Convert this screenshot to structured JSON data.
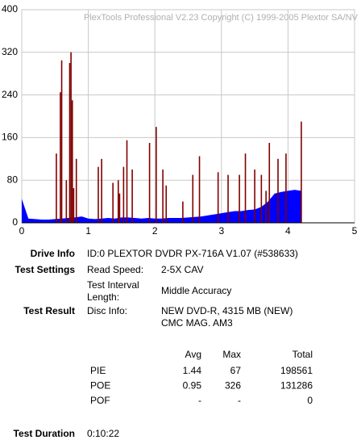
{
  "chart_data": {
    "type": "plex",
    "watermark": "PlexTools Professional V2.23 Copyright (C) 1999-2005 Plextor SA/NV",
    "xlim": [
      0,
      5
    ],
    "xticks": [
      0,
      1,
      2,
      3,
      4,
      5
    ],
    "ylim": [
      0,
      400
    ],
    "yticks": [
      0,
      80,
      160,
      240,
      320,
      400
    ],
    "grid": true,
    "series": [
      {
        "color": "#0000ff",
        "kind": "area",
        "x": [
          0,
          0.1,
          0.2,
          0.3,
          0.4,
          0.5,
          0.6,
          0.7,
          0.8,
          0.9,
          1,
          1.1,
          1.2,
          1.3,
          1.4,
          1.5,
          1.6,
          1.7,
          1.8,
          1.9,
          2,
          2.1,
          2.2,
          2.3,
          2.4,
          2.5,
          2.6,
          2.7,
          2.8,
          2.9,
          3,
          3.1,
          3.2,
          3.3,
          3.4,
          3.5,
          3.6,
          3.7,
          3.8,
          3.9,
          4,
          4.1,
          4.2
        ],
        "values": [
          45,
          8,
          7,
          6,
          6,
          7,
          8,
          9,
          10,
          12,
          8,
          7,
          8,
          9,
          8,
          10,
          10,
          9,
          8,
          9,
          8,
          8,
          9,
          9,
          9,
          10,
          11,
          12,
          14,
          16,
          18,
          20,
          22,
          22,
          24,
          25,
          30,
          40,
          55,
          58,
          60,
          62,
          60
        ]
      },
      {
        "color": "#800000",
        "kind": "spikes",
        "x": [
          0.52,
          0.58,
          0.6,
          0.67,
          0.72,
          0.74,
          0.76,
          0.78,
          0.82,
          1.15,
          1.2,
          1.37,
          1.45,
          1.47,
          1.53,
          1.58,
          1.66,
          1.92,
          2.02,
          2.12,
          2.17,
          2.42,
          2.57,
          2.67,
          2.95,
          3.1,
          3.27,
          3.36,
          3.5,
          3.6,
          3.67,
          3.72,
          3.85,
          3.97,
          4.2
        ],
        "values": [
          130,
          245,
          305,
          80,
          300,
          320,
          230,
          65,
          120,
          105,
          120,
          75,
          80,
          55,
          105,
          155,
          100,
          150,
          180,
          100,
          70,
          40,
          90,
          125,
          95,
          90,
          90,
          130,
          100,
          90,
          60,
          150,
          120,
          130,
          190
        ]
      }
    ]
  },
  "info": {
    "drive_info": {
      "label": "Drive Info",
      "value": "ID:0 PLEXTOR DVDR PX-716A V1.07 (#538633)"
    },
    "test_settings": {
      "label": "Test Settings",
      "read_speed_label": "Read Speed:",
      "read_speed": "2-5X CAV",
      "interval_label": [
        "Test Interval",
        "Length:"
      ],
      "interval": "Middle Accuracy"
    },
    "test_result": {
      "label": "Test Result",
      "disc_info_label": "Disc Info:",
      "disc_info": [
        "NEW DVD-R, 4315 MB (NEW)",
        "CMC MAG. AM3"
      ]
    },
    "table": {
      "headers": [
        "Avg",
        "Max",
        "Total"
      ],
      "rows": [
        [
          "PIE",
          "1.44",
          "67",
          "198561"
        ],
        [
          "POE",
          "0.95",
          "326",
          "131286"
        ],
        [
          "POF",
          "-",
          "-",
          "0"
        ]
      ]
    },
    "test_duration": {
      "label": "Test Duration",
      "value": "0:10:22"
    }
  }
}
